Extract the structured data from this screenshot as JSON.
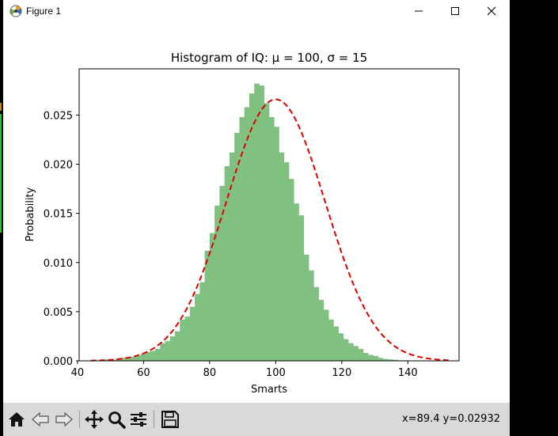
{
  "window": {
    "title": "Figure 1"
  },
  "chart_data": {
    "type": "bar",
    "title": "Histogram of IQ: μ = 100, σ = 15",
    "xlabel": "Smarts",
    "ylabel": "Probability",
    "xlim": [
      40.5,
      155.5
    ],
    "ylim": [
      0,
      0.0297
    ],
    "xticks": [
      40,
      60,
      80,
      100,
      120,
      140
    ],
    "yticks": [
      0.0,
      0.005,
      0.01,
      0.015,
      0.02,
      0.025
    ],
    "ytick_labels": [
      "0.000",
      "0.005",
      "0.010",
      "0.015",
      "0.020",
      "0.025"
    ],
    "grid": false,
    "bar_color": "#80c080",
    "line_color": "#e00000",
    "bin_edges": [
      44,
      45.5,
      47,
      48.5,
      50,
      51.5,
      53,
      54.5,
      56,
      57.5,
      59,
      60.5,
      62,
      63.5,
      65,
      66.5,
      68,
      69.5,
      71,
      72.5,
      74,
      75.5,
      77,
      78.5,
      80,
      81.5,
      83,
      84.5,
      86,
      87.5,
      89,
      90.5,
      92,
      93.5,
      95,
      96.5,
      98,
      99.5,
      101,
      102.5,
      104,
      105.5,
      107,
      108.5,
      110,
      111.5,
      113,
      114.5,
      116,
      117.5,
      119,
      120.5,
      122,
      123.5,
      125,
      126.5,
      128,
      129.5,
      131,
      132.5,
      134,
      135.5,
      137,
      138.5,
      140,
      141.5,
      143,
      144.5,
      146,
      147.5,
      149,
      150.5,
      152
    ],
    "values": [
      5e-05,
      5e-05,
      0.0001,
      0.00015,
      0.0001,
      0.0002,
      0.0003,
      0.0003,
      0.0004,
      0.0005,
      0.0007,
      0.0009,
      0.001,
      0.0012,
      0.0018,
      0.002,
      0.0025,
      0.003,
      0.0042,
      0.0045,
      0.0055,
      0.0068,
      0.008,
      0.0112,
      0.013,
      0.0158,
      0.0178,
      0.0198,
      0.0212,
      0.0232,
      0.0248,
      0.0258,
      0.0272,
      0.0282,
      0.028,
      0.0262,
      0.0248,
      0.0238,
      0.0212,
      0.0202,
      0.0185,
      0.016,
      0.0148,
      0.0108,
      0.0092,
      0.0075,
      0.0062,
      0.0052,
      0.0042,
      0.0035,
      0.0028,
      0.0022,
      0.0018,
      0.0015,
      0.0012,
      0.0008,
      0.0006,
      0.0005,
      0.0003,
      0.0002,
      0.00015,
      0.0001,
      5e-05,
      5e-05,
      3e-05,
      2e-05,
      1e-05,
      1e-05,
      1e-05,
      1e-05,
      1e-05,
      1e-05
    ],
    "curve": {
      "type": "normal-pdf",
      "mu": 100,
      "sigma": 15,
      "x_range": [
        44,
        153
      ],
      "style": "dashed"
    }
  },
  "toolbar": {
    "buttons": [
      {
        "name": "home-button",
        "icon": "home-icon"
      },
      {
        "name": "back-button",
        "icon": "back-arrow-icon"
      },
      {
        "name": "forward-button",
        "icon": "forward-arrow-icon"
      },
      {
        "name": "pan-button",
        "icon": "move-icon"
      },
      {
        "name": "zoom-button",
        "icon": "magnifier-icon"
      },
      {
        "name": "configure-subplots-button",
        "icon": "sliders-icon"
      },
      {
        "name": "save-button",
        "icon": "floppy-disk-icon"
      }
    ],
    "coords": "x=89.4 y=0.02932"
  }
}
